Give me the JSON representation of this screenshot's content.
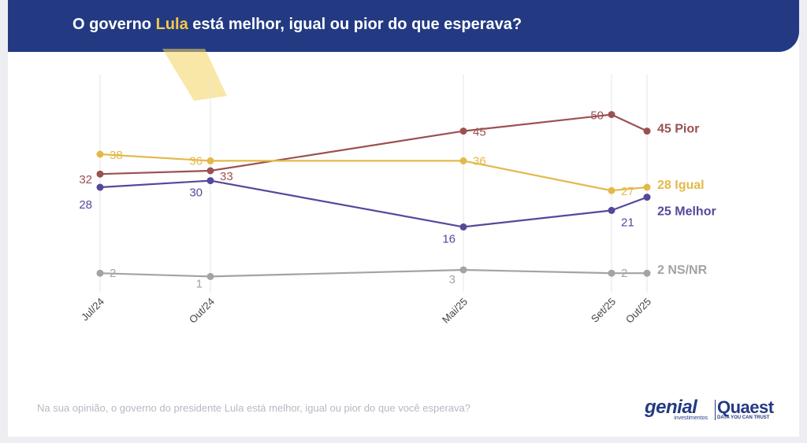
{
  "header": {
    "title_pre": "O governo ",
    "title_highlight": "Lula",
    "title_post": " está melhor, igual ou pior do que esperava?"
  },
  "footnote": "Na sua opinião, o governo do presidente Lula está melhor, igual ou pior do que você esperava?",
  "logos": {
    "genial_name": "genial",
    "genial_sub": "investimentos",
    "quaest_name": "Quaest",
    "quaest_tagline": "DATA YOU CAN TRUST"
  },
  "colors": {
    "header_bg": "#233a83",
    "highlight": "#f2c94c",
    "pior": "#9b5150",
    "igual": "#e3b94a",
    "melhor": "#55489a",
    "nsnr": "#a3a3a3"
  },
  "chart_data": {
    "type": "line",
    "categories": [
      "Jul/24",
      "Out/24",
      "Mai/25",
      "Set/25",
      "Out/25"
    ],
    "series": [
      {
        "name": "Pior",
        "end_label": "45 Pior",
        "values": [
          32,
          33,
          45,
          50,
          45
        ],
        "color": "#9b5150"
      },
      {
        "name": "Igual",
        "end_label": "28 Igual",
        "values": [
          38,
          36,
          36,
          27,
          28
        ],
        "color": "#e3b94a"
      },
      {
        "name": "Melhor",
        "end_label": "25 Melhor",
        "values": [
          28,
          30,
          16,
          21,
          25
        ],
        "color": "#55489a"
      },
      {
        "name": "NS/NR",
        "end_label": "2 NS/NR",
        "values": [
          2,
          1,
          3,
          2,
          2
        ],
        "color": "#a3a3a3"
      }
    ],
    "grid": true,
    "legend": "end-of-line labels"
  }
}
